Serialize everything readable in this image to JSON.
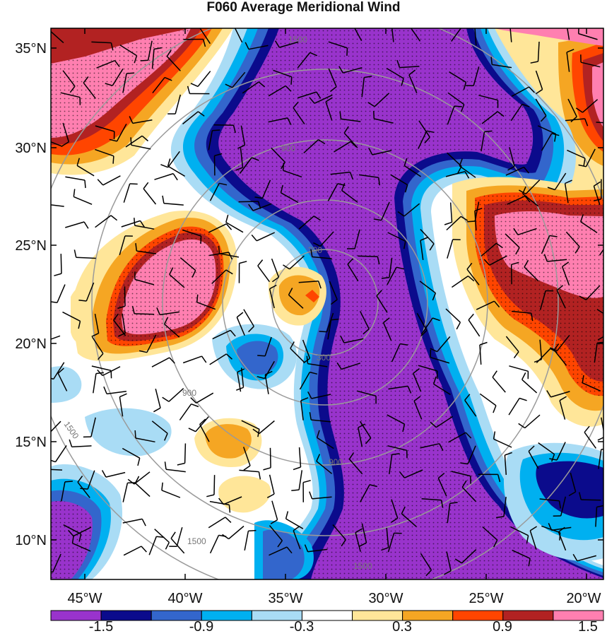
{
  "title": "F060 Average Meridional Wind",
  "map": {
    "lat_ticks": [
      "35°N",
      "30°N",
      "25°N",
      "20°N",
      "15°N",
      "10°N"
    ],
    "lon_ticks": [
      "45°W",
      "40°W",
      "35°W",
      "30°W",
      "25°W",
      "20°W"
    ],
    "range_ring_labels": [
      "300",
      "900",
      "1500"
    ],
    "stippling": true,
    "wind_barbs": true
  },
  "colorbar": {
    "labels": [
      "-1.5",
      "-0.9",
      "-0.3",
      "0.3",
      "0.9",
      "1.5"
    ],
    "colors": [
      "#9933cc",
      "#0b0b8c",
      "#3366cc",
      "#00b0f0",
      "#a9dcf5",
      "#ffffff",
      "#ffe699",
      "#f5a623",
      "#ff4500",
      "#b22222",
      "#ff7fb0"
    ]
  }
}
